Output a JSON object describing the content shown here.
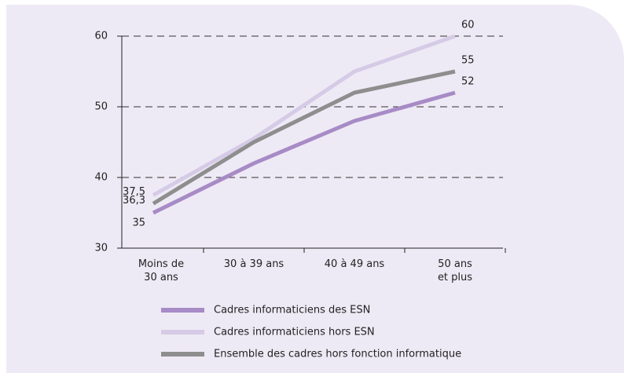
{
  "chart_data": {
    "type": "line",
    "categories": [
      "Moins de\n30 ans",
      "30 à 39 ans",
      "40 à 49 ans",
      "50 ans\net plus"
    ],
    "series": [
      {
        "name": "Cadres informaticiens des ESN",
        "color": "#a78bc6",
        "values": [
          35,
          42,
          48,
          52
        ],
        "value_labels": [
          "35",
          null,
          null,
          "52"
        ]
      },
      {
        "name": "Cadres informaticiens hors ESN",
        "color": "#d6cbe6",
        "values": [
          37.5,
          45.5,
          55,
          60
        ],
        "value_labels": [
          "37,5",
          null,
          null,
          "60"
        ]
      },
      {
        "name": "Ensemble des cadres hors fonction informatique",
        "color": "#8e8e8e",
        "values": [
          36.3,
          45,
          52,
          55
        ],
        "value_labels": [
          "36,3",
          null,
          null,
          "55"
        ]
      }
    ],
    "ylim": [
      30,
      60
    ],
    "yticks": [
      30,
      40,
      50,
      60
    ],
    "grid": true
  }
}
